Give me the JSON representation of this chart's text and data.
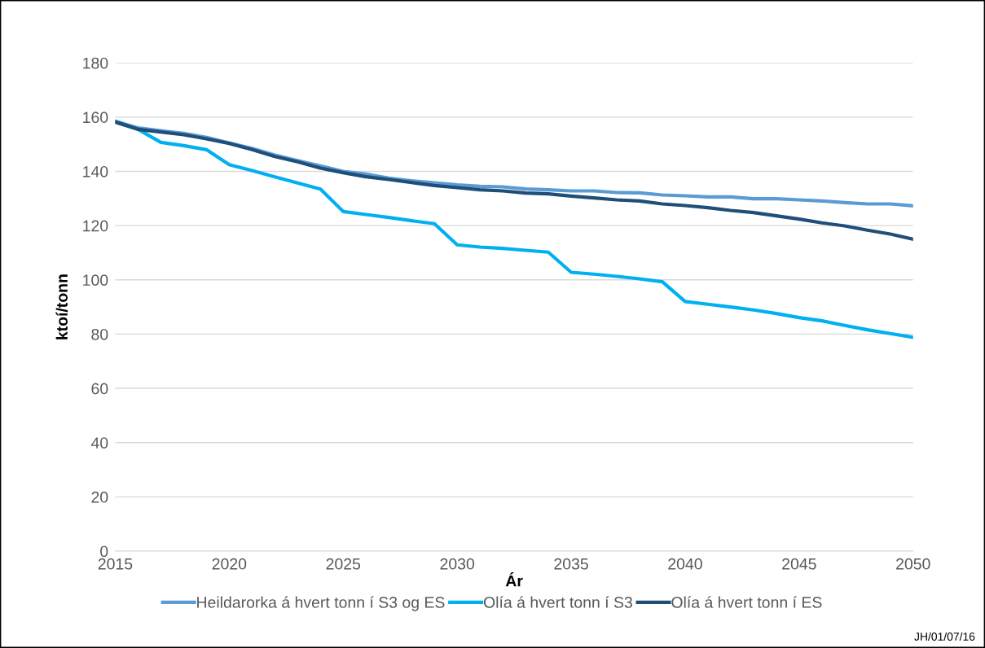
{
  "chart_data": {
    "type": "line",
    "xlabel": "Ár",
    "ylabel": "ktoí/tonn",
    "x": [
      2015,
      2016,
      2017,
      2018,
      2019,
      2020,
      2021,
      2022,
      2023,
      2024,
      2025,
      2026,
      2027,
      2028,
      2029,
      2030,
      2031,
      2032,
      2033,
      2034,
      2035,
      2036,
      2037,
      2038,
      2039,
      2040,
      2041,
      2042,
      2043,
      2044,
      2045,
      2046,
      2047,
      2048,
      2049,
      2050
    ],
    "series": [
      {
        "name": "Heildarorka á hvert tonn í S3 og ES",
        "color": "#5b9bd5",
        "values": [
          158.5,
          156,
          155,
          154,
          152.5,
          150.5,
          148.5,
          146,
          144,
          142,
          140,
          139,
          137.5,
          136.5,
          135.8,
          135,
          134.5,
          134.3,
          133.5,
          133.2,
          132.8,
          132.8,
          132.2,
          132.1,
          131.3,
          131,
          130.6,
          130.6,
          129.9,
          129.9,
          129.5,
          129.1,
          128.5,
          128,
          128,
          127.3
        ]
      },
      {
        "name": "Olía á hvert tonn í S3",
        "color": "#00b0f0",
        "values": [
          158.2,
          155.5,
          150.7,
          149.5,
          148,
          142.5,
          140.3,
          138,
          135.7,
          133.5,
          125.2,
          124.1,
          123,
          121.8,
          120.7,
          112.9,
          112.1,
          111.6,
          110.9,
          110.2,
          102.8,
          102.1,
          101.3,
          100.4,
          99.3,
          92,
          91,
          90,
          88.9,
          87.6,
          86.1,
          84.9,
          83.2,
          81.6,
          80.2,
          78.8
        ]
      },
      {
        "name": "Olía á hvert tonn í ES",
        "color": "#1f4e79",
        "values": [
          158.2,
          155.5,
          154.5,
          153.5,
          152,
          150.3,
          148,
          145.5,
          143.5,
          141.2,
          139.5,
          138,
          137,
          135.9,
          134.8,
          134,
          133.2,
          132.8,
          132,
          131.7,
          130.9,
          130.2,
          129.5,
          129.1,
          128,
          127.4,
          126.6,
          125.6,
          124.8,
          123.6,
          122.4,
          121,
          119.9,
          118.3,
          116.9,
          115
        ]
      }
    ],
    "xlim": [
      2015,
      2050
    ],
    "xticks": [
      2015,
      2020,
      2025,
      2030,
      2035,
      2040,
      2045,
      2050
    ],
    "ylim": [
      0,
      180
    ],
    "yticks": [
      0,
      20,
      40,
      60,
      80,
      100,
      120,
      140,
      160,
      180
    ],
    "grid": "y",
    "legend": "bottom",
    "marker": "none",
    "line_style": "solid",
    "annotations": [
      "JH/01/07/16"
    ]
  }
}
